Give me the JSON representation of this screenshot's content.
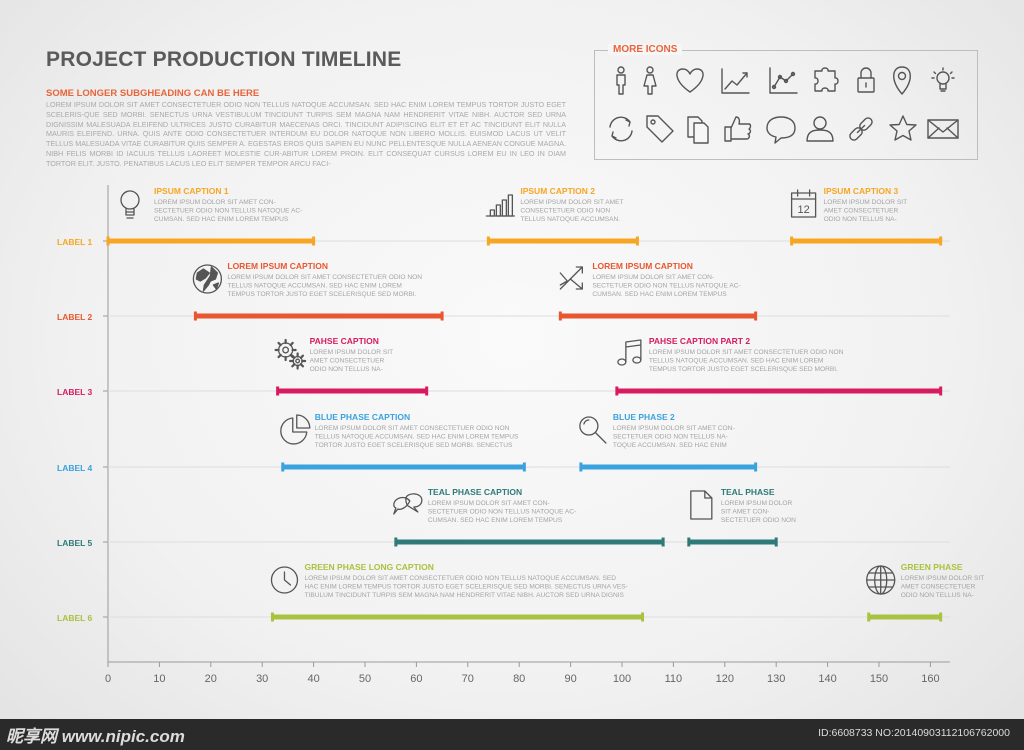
{
  "header": {
    "title": "PROJECT PRODUCTION TIMELINE",
    "subheading": "SOME LONGER SUBGHEADING CAN BE HERE",
    "intro": "LOREM IPSUM DOLOR SIT AMET CONSECTETUER ODIO NON TELLUS NATOQUE ACCUMSAN. SED HAC ENIM LOREM TEMPUS TORTOR JUSTO EGET SCELERIS-QUE SED MORBI. SENECTUS URNA VESTIBULUM TINCIDUNT TURPIS SEM MAGNA NAM HENDRERIT VITAE NIBH. AUCTOR SED URNA DIGNISSIM MALESUADA ELEIFEND ULTRICES JUSTO CURABITUR MAECENAS ORCI. TINCIDUNT ADIPISCING ELIT ET ET AC TINCIDUNT ELIT NULLA MAURIS ELEIFEND. URNA. QUIS ANTE ODIO CONSECTETUER INTERDUM EU DOLOR NATOQUE NON LIBERO MOLLIS. EUISMOD LACUS UT VELIT TELLUS MALESUADA VITAE CURABITUR QUIS SEMPER A. EGESTAS EROS QUIS SAPIEN EU NUNC PELLENTESQUE NULLA AENEAN CONGUE MAGNA. NIBH FELIS MORBI ID IACULIS TELLUS LAOREET MOLESTIE CUR-ABITUR LOREM PROIN. ELIT CONSEQUAT CURSUS LOREM EU IN LEO IN DIAM TORTOR ELIT. JUSTO. PENATIBUS LACUS LEO ELIT SEMPER TEMPOR ARCU FACI-"
  },
  "more_icons": {
    "title": "MORE ICONS",
    "icons": [
      "male-icon",
      "female-icon",
      "heart-icon",
      "line-chart-icon",
      "scatter-chart-icon",
      "puzzle-icon",
      "lock-icon",
      "map-pin-icon",
      "lightbulb-icon",
      "refresh-icon",
      "tag-icon",
      "documents-icon",
      "thumbs-up-icon",
      "speech-bubble-icon",
      "user-icon",
      "chain-link-icon",
      "star-icon",
      "envelope-icon"
    ]
  },
  "colors": {
    "green": "#a9c23f",
    "teal": "#2e7a7a",
    "blue": "#3aa2de",
    "magenta": "#d81b60",
    "orange_red": "#e8572f",
    "yellow": "#f6a623",
    "axis": "#9a9a9a",
    "grid": "#dddddd",
    "caption_text": "#a4a4a4",
    "icon": "#555555"
  },
  "chart_data": {
    "type": "gantt",
    "x_ticks": [
      0,
      10,
      20,
      30,
      40,
      50,
      60,
      70,
      80,
      90,
      100,
      110,
      120,
      130,
      140,
      150,
      160
    ],
    "xlim": [
      0,
      163
    ],
    "grid": true,
    "rows": [
      {
        "label": "LABEL 6",
        "color": "green",
        "phases": [
          {
            "start": 32,
            "end": 104,
            "caption": "GREEN PHASE LONG CAPTION",
            "icon": "clock-icon",
            "text": [
              "LOREM IPSUM DOLOR SIT AMET CONSECTETUER ODIO NON TELLUS NATOQUE ACCUMSAN. SED",
              "HAC ENIM LOREM TEMPUS TORTOR JUSTO EGET SCELERISQUE SED MORBI. SENECTUS URNA VES-",
              "TIBULUM TINCIDUNT TURPIS SEM MAGNA NAM HENDRERIT VITAE NIBH. AUCTOR SED URNA DIGNIS"
            ]
          },
          {
            "start": 148,
            "end": 162,
            "caption": "GREEN PHASE",
            "icon": "globe-icon",
            "text": [
              "LOREM IPSUM DOLOR SIT",
              "AMET CONSECTETUER",
              "ODIO NON TELLUS NA-"
            ]
          }
        ]
      },
      {
        "label": "LABEL 5",
        "color": "teal",
        "phases": [
          {
            "start": 56,
            "end": 108,
            "caption": "TEAL PHASE CAPTION",
            "icon": "chat-bubbles-icon",
            "text": [
              "LOREM IPSUM DOLOR SIT AMET CON-",
              "SECTETUER ODIO NON TELLUS NATOQUE AC-",
              "CUMSAN. SED HAC ENIM LOREM TEMPUS"
            ]
          },
          {
            "start": 113,
            "end": 130,
            "caption": "TEAL PHASE",
            "icon": "document-icon",
            "text": [
              "LOREM IPSUM DOLOR",
              "SIT AMET CON-",
              "SECTETUER ODIO NON"
            ]
          }
        ]
      },
      {
        "label": "LABEL 4",
        "color": "blue",
        "phases": [
          {
            "start": 34,
            "end": 81,
            "caption": "BLUE PHASE CAPTION",
            "icon": "pie-chart-icon",
            "text": [
              "LOREM IPSUM DOLOR SIT AMET CONSECTETUER ODIO NON",
              "TELLUS NATOQUE ACCUMSAN. SED HAC ENIM LOREM TEMPUS",
              "TORTOR JUSTO EGET SCELERISQUE SED MORBI. SENECTUS"
            ]
          },
          {
            "start": 92,
            "end": 126,
            "caption": "BLUE PHASE 2",
            "icon": "magnifier-icon",
            "text": [
              "LOREM IPSUM DOLOR SIT AMET CON-",
              "SECTETUER ODIO NON TELLUS NA-",
              "TOQUE ACCUMSAN. SED HAC ENIM"
            ]
          }
        ]
      },
      {
        "label": "LABEL 3",
        "color": "magenta",
        "phases": [
          {
            "start": 33,
            "end": 62,
            "caption": "PAHSE CAPTION",
            "icon": "gears-icon",
            "text": [
              "LOREM IPSUM DOLOR SIT",
              "AMET CONSECTETUER",
              "ODIO NON TELLUS NA-"
            ]
          },
          {
            "start": 99,
            "end": 162,
            "caption": "PAHSE CAPTION PART 2",
            "icon": "music-note-icon",
            "text": [
              "LOREM IPSUM DOLOR SIT AMET CONSECTETUER ODIO NON",
              "TELLUS NATOQUE ACCUMSAN. SED HAC ENIM LOREM",
              "TEMPUS TORTOR JUSTO EGET SCELERISQUE SED MORBI."
            ]
          }
        ]
      },
      {
        "label": "LABEL 2",
        "color": "orange_red",
        "phases": [
          {
            "start": 17,
            "end": 65,
            "caption": "LOREM IPSUM CAPTION",
            "icon": "earth-icon",
            "text": [
              "LOREM IPSUM DOLOR SIT AMET CONSECTETUER ODIO NON",
              "TELLUS NATOQUE ACCUMSAN. SED HAC ENIM LOREM",
              "TEMPUS TORTOR JUSTO EGET SCELERISQUE SED MORBI."
            ]
          },
          {
            "start": 88,
            "end": 126,
            "caption": "LOREM IPSUM CAPTION",
            "icon": "arrows-icon",
            "text": [
              "LOREM IPSUM DOLOR SIT AMET CON-",
              "SECTETUER ODIO NON TELLUS NATOQUE AC-",
              "CUMSAN. SED HAC ENIM LOREM TEMPUS"
            ]
          }
        ]
      },
      {
        "label": "LABEL 1",
        "color": "yellow",
        "phases": [
          {
            "start": 0,
            "end": 40,
            "caption": "IPSUM CAPTION 1",
            "icon": "lightbulb-icon",
            "text": [
              "LOREM IPSUM DOLOR SIT AMET CON-",
              "SECTETUER ODIO NON TELLUS NATOQUE AC-",
              "CUMSAN. SED HAC ENIM LOREM TEMPUS"
            ]
          },
          {
            "start": 74,
            "end": 103,
            "caption": "IPSUM CAPTION 2",
            "icon": "bar-chart-icon",
            "text": [
              "LOREM IPSUM DOLOR SIT AMET",
              "CONSECTETUER ODIO NON",
              "TELLUS NATOQUE ACCUMSAN."
            ]
          },
          {
            "start": 133,
            "end": 162,
            "caption": "IPSUM CAPTION 3",
            "icon": "calendar-icon",
            "icon_text": "12",
            "text": [
              "LOREM IPSUM DOLOR SIT",
              "AMET CONSECTETUER",
              "ODIO NON TELLUS NA-"
            ]
          }
        ]
      }
    ]
  },
  "watermark": {
    "left": "昵享网 www.nipic.com",
    "right": "ID:6608733 NO:20140903112106762000"
  }
}
